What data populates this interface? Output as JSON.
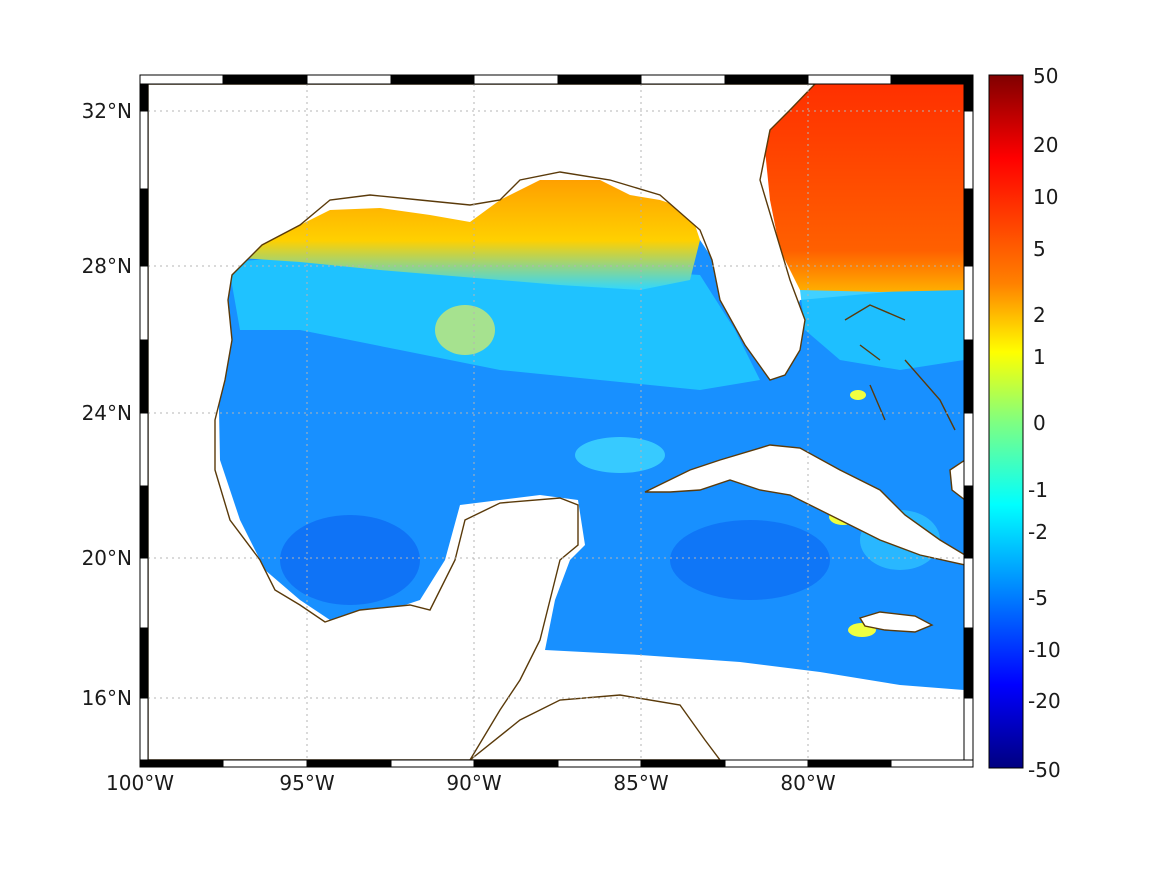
{
  "map": {
    "x_ticks": [
      "100°W",
      "95°W",
      "90°W",
      "85°W",
      "80°W"
    ],
    "y_ticks": [
      "32°N",
      "28°N",
      "24°N",
      "20°N",
      "16°N"
    ],
    "lon_range": [
      -100,
      -75
    ],
    "lat_range": [
      14.5,
      33
    ],
    "coastline_color": "#5a3a0a",
    "grid": "on, dotted gray",
    "frame": "alternating black and white border"
  },
  "colorbar": {
    "tick_labels": [
      "50",
      "20",
      "10",
      "5",
      "2",
      "1",
      "0",
      "-1",
      "-2",
      "-5",
      "-10",
      "-20",
      "-50"
    ],
    "colormap": "jet",
    "range": [
      -50,
      50
    ],
    "scale": "symmetric log-like"
  }
}
